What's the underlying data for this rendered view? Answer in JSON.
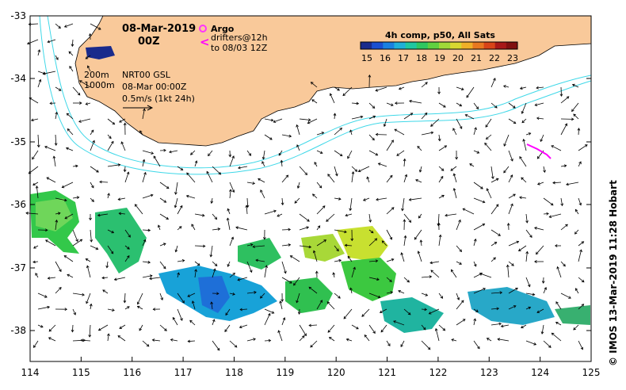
{
  "map": {
    "date_title": "08-Mar-2019",
    "time_title": "00Z",
    "argo_label": "Argo",
    "drifters_line1": "drifters@12h",
    "drifters_line2": "to 08/03 12Z",
    "drifters_symbol": "<",
    "isobath_200": "200m",
    "isobath_1000": "1000m",
    "product": "NRT00 GSL",
    "product_time": "08-Mar 00:00Z",
    "vector_scale": "0.5m/s (1kt 24h)",
    "colorbar_title": "4h comp, p50, All Sats",
    "colorbar_ticks": [
      "15",
      "16",
      "17",
      "18",
      "19",
      "20",
      "21",
      "22",
      "23"
    ],
    "credit": "© IMOS 13-Mar-2019 11:28 Hobart",
    "x_ticks": [
      "114",
      "115",
      "116",
      "117",
      "118",
      "119",
      "120",
      "121",
      "122",
      "123",
      "124",
      "125"
    ],
    "y_ticks": [
      "-33",
      "-34",
      "-35",
      "-36",
      "-37",
      "-38"
    ],
    "colors": {
      "land": "#f9c99a",
      "isobath": "#3fd8e8",
      "argo": "#ff33ff",
      "drifter": "#ff00ff"
    }
  }
}
